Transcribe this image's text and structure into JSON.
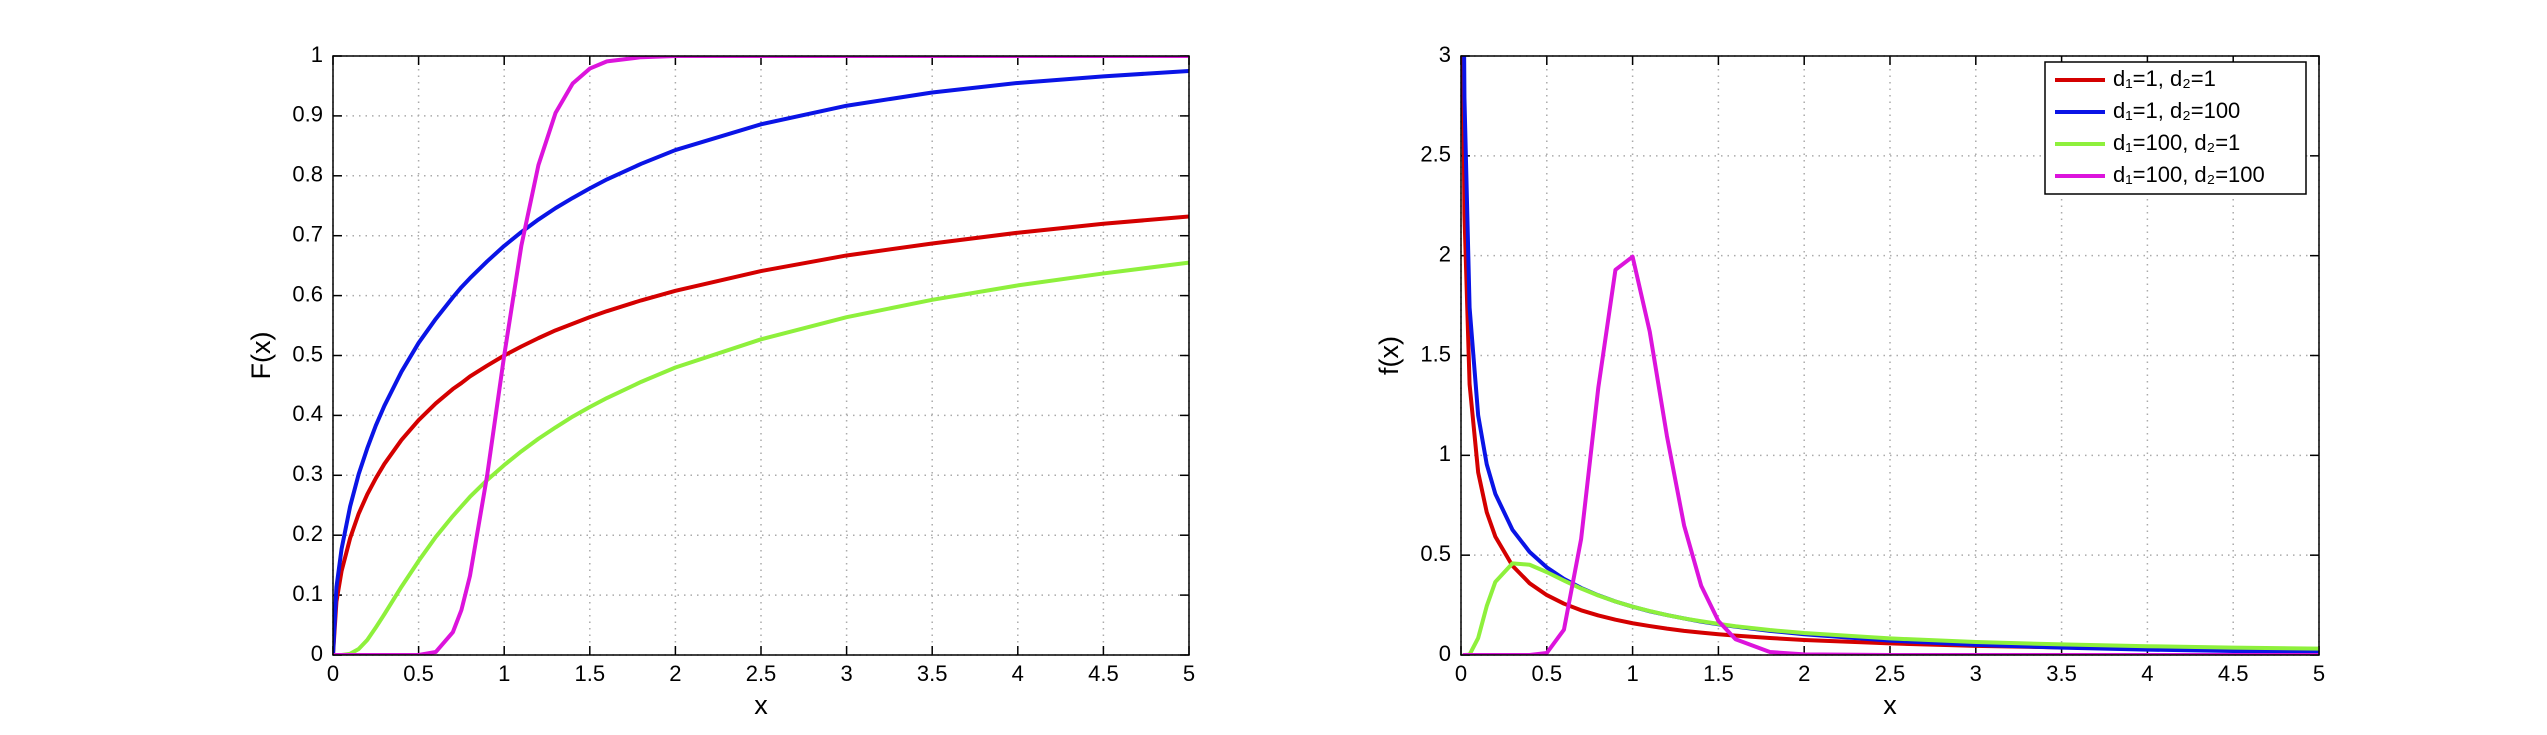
{
  "chart_data": [
    {
      "type": "line",
      "xlabel": "x",
      "ylabel": "F(x)",
      "x": [
        0,
        0.02,
        0.05,
        0.1,
        0.15,
        0.2,
        0.25,
        0.3,
        0.4,
        0.5,
        0.6,
        0.7,
        0.75,
        0.8,
        0.9,
        1,
        1.1,
        1.2,
        1.3,
        1.4,
        1.5,
        1.6,
        1.8,
        2,
        2.5,
        3,
        3.5,
        4,
        4.5,
        5
      ],
      "series": [
        {
          "color": "#d40000",
          "values": [
            0,
            0.089,
            0.14,
            0.195,
            0.236,
            0.268,
            0.295,
            0.319,
            0.359,
            0.392,
            0.42,
            0.444,
            0.454,
            0.465,
            0.483,
            0.5,
            0.515,
            0.529,
            0.542,
            0.553,
            0.564,
            0.574,
            0.592,
            0.608,
            0.641,
            0.667,
            0.687,
            0.705,
            0.72,
            0.732
          ]
        },
        {
          "color": "#0a14e6",
          "values": [
            0,
            0.113,
            0.177,
            0.248,
            0.302,
            0.345,
            0.383,
            0.416,
            0.473,
            0.521,
            0.561,
            0.597,
            0.614,
            0.629,
            0.657,
            0.683,
            0.706,
            0.727,
            0.746,
            0.763,
            0.779,
            0.794,
            0.82,
            0.843,
            0.886,
            0.917,
            0.939,
            0.955,
            0.966,
            0.975
          ]
        },
        {
          "color": "#8ef03c",
          "values": [
            0,
            0,
            0,
            0.002,
            0.01,
            0.025,
            0.046,
            0.068,
            0.114,
            0.157,
            0.197,
            0.232,
            0.248,
            0.264,
            0.292,
            0.317,
            0.34,
            0.361,
            0.38,
            0.398,
            0.414,
            0.429,
            0.456,
            0.48,
            0.527,
            0.564,
            0.593,
            0.617,
            0.637,
            0.655
          ]
        },
        {
          "color": "#dc14dc",
          "values": [
            0,
            0,
            0,
            0,
            0,
            0,
            0,
            0,
            0,
            0,
            0.005,
            0.038,
            0.075,
            0.132,
            0.299,
            0.5,
            0.683,
            0.818,
            0.905,
            0.954,
            0.979,
            0.991,
            0.998,
            1,
            1,
            1,
            1,
            1,
            1,
            1
          ]
        }
      ],
      "xlim": [
        0,
        5
      ],
      "ylim": [
        0,
        1
      ],
      "xticks": [
        0,
        0.5,
        1,
        1.5,
        2,
        2.5,
        3,
        3.5,
        4,
        4.5,
        5
      ],
      "yticks": [
        0,
        0.1,
        0.2,
        0.3,
        0.4,
        0.5,
        0.6,
        0.7,
        0.8,
        0.9,
        1
      ],
      "grid": true
    },
    {
      "type": "line",
      "xlabel": "x",
      "ylabel": "f(x)",
      "x": [
        0.01,
        0.02,
        0.05,
        0.1,
        0.15,
        0.2,
        0.3,
        0.4,
        0.5,
        0.6,
        0.7,
        0.8,
        0.9,
        1,
        1.1,
        1.2,
        1.3,
        1.4,
        1.5,
        1.6,
        1.8,
        2,
        2.5,
        3,
        3.5,
        4,
        4.5,
        5
      ],
      "series": [
        {
          "name": "d₁=1, d₂=1",
          "color": "#d40000",
          "values": [
            3.152,
            2.206,
            1.356,
            0.915,
            0.715,
            0.593,
            0.447,
            0.359,
            0.3,
            0.257,
            0.224,
            0.198,
            0.177,
            0.159,
            0.145,
            0.132,
            0.121,
            0.112,
            0.104,
            0.097,
            0.085,
            0.075,
            0.058,
            0.046,
            0.038,
            0.032,
            0.027,
            0.024
          ]
        },
        {
          "name": "d₁=1, d₂=100",
          "color": "#0a14e6",
          "values": [
            3.969,
            2.792,
            1.74,
            1.2,
            0.955,
            0.807,
            0.627,
            0.516,
            0.439,
            0.381,
            0.336,
            0.299,
            0.268,
            0.242,
            0.219,
            0.2,
            0.183,
            0.167,
            0.154,
            0.142,
            0.121,
            0.104,
            0.072,
            0.051,
            0.037,
            0.027,
            0.02,
            0.015
          ]
        },
        {
          "name": "d₁=100, d₂=1",
          "color": "#8ef03c",
          "values": [
            0,
            0,
            0.002,
            0.085,
            0.245,
            0.366,
            0.459,
            0.452,
            0.415,
            0.373,
            0.333,
            0.298,
            0.268,
            0.242,
            0.22,
            0.2,
            0.183,
            0.169,
            0.156,
            0.144,
            0.125,
            0.11,
            0.083,
            0.065,
            0.053,
            0.044,
            0.037,
            0.032
          ]
        },
        {
          "name": "d₁=100, d₂=100",
          "color": "#dc14dc",
          "values": [
            0,
            0,
            0,
            0,
            0,
            0,
            0,
            0,
            0.01,
            0.127,
            0.581,
            1.338,
            1.929,
            1.995,
            1.619,
            1.097,
            0.649,
            0.346,
            0.17,
            0.079,
            0.015,
            0.003,
            0,
            0,
            0,
            0,
            0,
            0
          ]
        }
      ],
      "xlim": [
        0,
        5
      ],
      "ylim": [
        0,
        3
      ],
      "xticks": [
        0,
        0.5,
        1,
        1.5,
        2,
        2.5,
        3,
        3.5,
        4,
        4.5,
        5
      ],
      "yticks": [
        0,
        0.5,
        1,
        1.5,
        2,
        2.5,
        3
      ],
      "grid": true,
      "legend": "northeast"
    }
  ]
}
